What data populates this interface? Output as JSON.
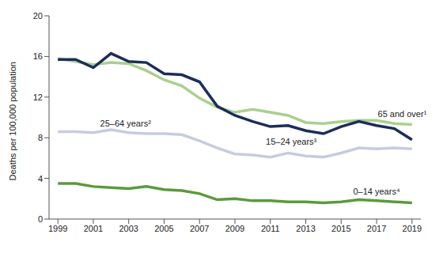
{
  "chart_data": {
    "type": "line",
    "y_label": "Deaths per 100,000 population",
    "x": [
      1999,
      2000,
      2001,
      2002,
      2003,
      2004,
      2005,
      2006,
      2007,
      2008,
      2009,
      2010,
      2011,
      2012,
      2013,
      2014,
      2015,
      2016,
      2017,
      2018,
      2019
    ],
    "xlim": [
      1998.5,
      2019.5
    ],
    "xticks": [
      1999,
      2001,
      2003,
      2005,
      2007,
      2009,
      2011,
      2013,
      2015,
      2017,
      2019
    ],
    "ylim": [
      0,
      20
    ],
    "yticks": [
      0,
      4,
      8,
      12,
      16,
      20
    ],
    "grid": false,
    "series": [
      {
        "name": "65 and over¹",
        "color": "#a9d08e",
        "values": [
          15.8,
          15.5,
          15.2,
          15.4,
          15.3,
          14.6,
          13.7,
          13.1,
          11.9,
          11.0,
          10.5,
          10.8,
          10.5,
          10.2,
          9.5,
          9.4,
          9.6,
          9.7,
          9.7,
          9.4,
          9.3
        ]
      },
      {
        "name": "15–24 years³",
        "color": "#1c2d5a",
        "values": [
          15.7,
          15.7,
          14.9,
          16.3,
          15.5,
          15.4,
          14.3,
          14.2,
          13.5,
          11.1,
          10.2,
          9.6,
          9.1,
          9.2,
          8.7,
          8.4,
          9.1,
          9.6,
          9.2,
          8.9,
          7.8
        ]
      },
      {
        "name": "25–64 years²",
        "color": "#c6cce0",
        "values": [
          8.6,
          8.6,
          8.5,
          8.8,
          8.5,
          8.4,
          8.4,
          8.3,
          7.7,
          7.0,
          6.4,
          6.3,
          6.1,
          6.5,
          6.2,
          6.1,
          6.5,
          7.0,
          6.9,
          7.0,
          6.9
        ]
      },
      {
        "name": "0–14 years⁴",
        "color": "#5b9a3c",
        "values": [
          3.5,
          3.5,
          3.2,
          3.1,
          3.0,
          3.2,
          2.9,
          2.8,
          2.5,
          1.9,
          2.0,
          1.8,
          1.8,
          1.7,
          1.7,
          1.6,
          1.7,
          1.9,
          1.8,
          1.7,
          1.6
        ]
      }
    ]
  }
}
